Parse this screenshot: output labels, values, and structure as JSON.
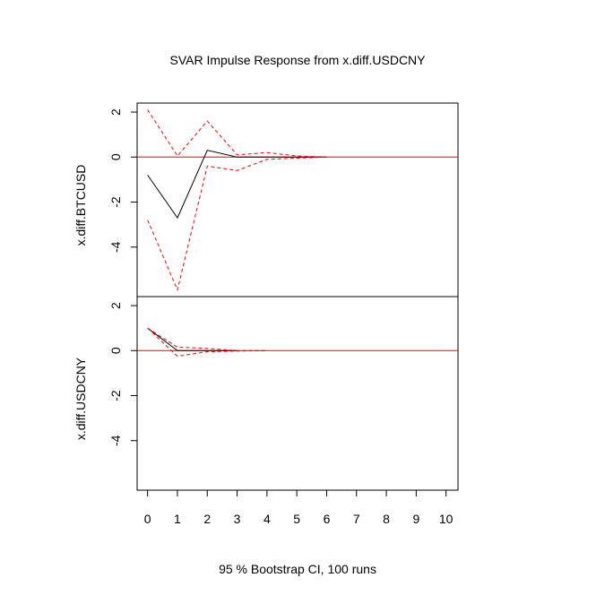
{
  "chart_data": {
    "type": "line",
    "title": "SVAR Impulse Response from x.diff.USDCNY",
    "xlabel": "95 % Bootstrap CI,  100 runs",
    "x": [
      0,
      1,
      2,
      3,
      4,
      5,
      6,
      7,
      8,
      9,
      10
    ],
    "xticks": [
      "0",
      "1",
      "2",
      "3",
      "4",
      "5",
      "6",
      "7",
      "8",
      "9",
      "10"
    ],
    "panels": [
      {
        "ylabel": "x.diff.BTCUSD",
        "ylim": [
          -6.2,
          2.4
        ],
        "yticks": [
          2,
          0,
          -2,
          -4
        ],
        "zero_line": 0,
        "series": [
          {
            "role": "response",
            "color": "#000000",
            "style": "solid",
            "x": [
              0,
              1,
              2,
              3,
              4,
              5,
              6
            ],
            "values": [
              -0.8,
              -2.7,
              0.3,
              0.0,
              0.0,
              0.0,
              0.0
            ]
          },
          {
            "role": "upper",
            "color": "#ff0000",
            "style": "dashed",
            "x": [
              0,
              1,
              2,
              3,
              4,
              5,
              6
            ],
            "values": [
              2.1,
              0.05,
              1.6,
              0.1,
              0.2,
              0.05,
              0.0
            ]
          },
          {
            "role": "lower",
            "color": "#ff0000",
            "style": "dashed",
            "x": [
              0,
              1,
              2,
              3,
              4,
              5,
              6
            ],
            "values": [
              -2.8,
              -5.9,
              -0.4,
              -0.6,
              -0.1,
              -0.05,
              0.0
            ]
          }
        ]
      },
      {
        "ylabel": "x.diff.USDCNY",
        "ylim": [
          -6.2,
          2.4
        ],
        "yticks": [
          2,
          0,
          -2,
          -4
        ],
        "zero_line": 0,
        "series": [
          {
            "role": "response",
            "color": "#000000",
            "style": "solid",
            "x": [
              0,
              1,
              2,
              3
            ],
            "values": [
              1.0,
              0.0,
              0.0,
              0.0
            ]
          },
          {
            "role": "upper",
            "color": "#ff0000",
            "style": "dashed",
            "x": [
              0,
              1,
              2,
              3,
              4
            ],
            "values": [
              1.0,
              0.15,
              0.1,
              0.0,
              0.0
            ]
          },
          {
            "role": "lower",
            "color": "#ff0000",
            "style": "dashed",
            "x": [
              0,
              1,
              2,
              3,
              4
            ],
            "values": [
              1.0,
              -0.25,
              -0.05,
              -0.02,
              0.0
            ]
          }
        ]
      }
    ]
  }
}
